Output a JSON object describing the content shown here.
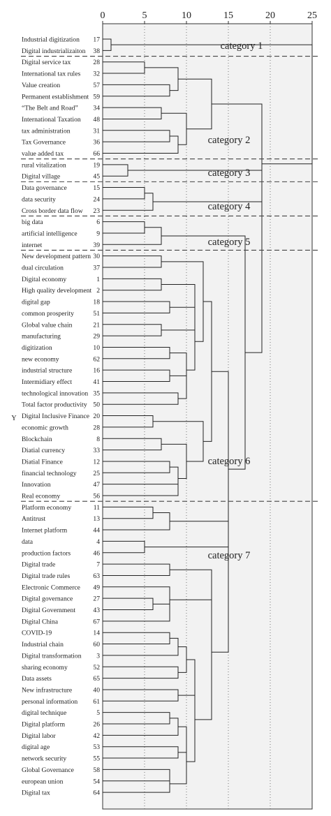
{
  "chart_data": {
    "type": "dendrogram",
    "axis": {
      "ticks": [
        0,
        5,
        10,
        15,
        20,
        25
      ],
      "range": [
        0,
        25
      ],
      "grid": "dotted-vertical"
    },
    "ylabel": "Y",
    "leaves": [
      {
        "label": "Industrial digitization",
        "id": "17"
      },
      {
        "label": "Digital industrializaiton",
        "id": "38"
      },
      {
        "label": "Digital service tax",
        "id": "28"
      },
      {
        "label": "International tax rules",
        "id": "32"
      },
      {
        "label": "Value creation",
        "id": "57"
      },
      {
        "label": "Permanent establishment",
        "id": "59"
      },
      {
        "label": "“The Belt and Road”",
        "id": "34"
      },
      {
        "label": "International Taxation",
        "id": "48"
      },
      {
        "label": "tax administration",
        "id": "31"
      },
      {
        "label": "Tax Governance",
        "id": "36"
      },
      {
        "label": "value added tax",
        "id": "66"
      },
      {
        "label": "rural vitalization",
        "id": "19"
      },
      {
        "label": "Digital village",
        "id": "45"
      },
      {
        "label": "Data governance",
        "id": "15"
      },
      {
        "label": "data security",
        "id": "24"
      },
      {
        "label": "Cross border data flow",
        "id": "23"
      },
      {
        "label": "big data",
        "id": "6"
      },
      {
        "label": "artificial intelligence",
        "id": "9"
      },
      {
        "label": "internet",
        "id": "39"
      },
      {
        "label": "New development pattern",
        "id": "30"
      },
      {
        "label": "dual circulation",
        "id": "37"
      },
      {
        "label": "Digital economy",
        "id": "1"
      },
      {
        "label": "High quality development",
        "id": "2"
      },
      {
        "label": "digital gap",
        "id": "18"
      },
      {
        "label": "common prosperity",
        "id": "51"
      },
      {
        "label": "Global value chain",
        "id": "21"
      },
      {
        "label": "manufacturing",
        "id": "29"
      },
      {
        "label": "digitization",
        "id": "10"
      },
      {
        "label": "new economy",
        "id": "62"
      },
      {
        "label": "industrial structure",
        "id": "16"
      },
      {
        "label": "Intermidiary effect",
        "id": "41"
      },
      {
        "label": "technological innovation",
        "id": "35"
      },
      {
        "label": "Total factor productivity",
        "id": "50"
      },
      {
        "label": "Digital Inclusive Finance",
        "id": "20"
      },
      {
        "label": "economic growth",
        "id": "28"
      },
      {
        "label": "Blockchain",
        "id": "8"
      },
      {
        "label": "Diatial currency",
        "id": "33"
      },
      {
        "label": "Diatial Finance",
        "id": "12"
      },
      {
        "label": "financial technology",
        "id": "25"
      },
      {
        "label": "Innovation",
        "id": "47"
      },
      {
        "label": "Real economy",
        "id": "56"
      },
      {
        "label": "Platform economy",
        "id": "11"
      },
      {
        "label": "Antitrust",
        "id": "13"
      },
      {
        "label": "Internet platform",
        "id": "44"
      },
      {
        "label": "data",
        "id": "4"
      },
      {
        "label": "production factors",
        "id": "46"
      },
      {
        "label": "Digital trade",
        "id": "7"
      },
      {
        "label": "Digital trade rules",
        "id": "63"
      },
      {
        "label": "Electronic Commerce",
        "id": "49"
      },
      {
        "label": "Digital governance",
        "id": "27"
      },
      {
        "label": "Digital Government",
        "id": "43"
      },
      {
        "label": "Digital China",
        "id": "67"
      },
      {
        "label": "COVID-19",
        "id": "14"
      },
      {
        "label": "Industrial chain",
        "id": "60"
      },
      {
        "label": "Digital transformation",
        "id": "3"
      },
      {
        "label": "sharing economy",
        "id": "52"
      },
      {
        "label": "Data assets",
        "id": "65"
      },
      {
        "label": "New infrastructure",
        "id": "40"
      },
      {
        "label": "personal information",
        "id": "61"
      },
      {
        "label": "digital technique",
        "id": "5"
      },
      {
        "label": "Digital platform",
        "id": "26"
      },
      {
        "label": "Digital labor",
        "id": "42"
      },
      {
        "label": "digital age",
        "id": "53"
      },
      {
        "label": "network security",
        "id": "55"
      },
      {
        "label": "Global Governance",
        "id": "58"
      },
      {
        "label": "european union",
        "id": "54"
      },
      {
        "label": "Digital tax",
        "id": "64"
      }
    ],
    "merges": [
      {
        "id": "a1",
        "height": 1,
        "children": [
          "L0",
          "L1"
        ]
      },
      {
        "id": "b1",
        "height": 5,
        "children": [
          "L2",
          "L3"
        ]
      },
      {
        "id": "b2",
        "height": 8,
        "children": [
          "L4",
          "L5"
        ]
      },
      {
        "id": "b3",
        "height": 9,
        "children": [
          "b1",
          "b2"
        ]
      },
      {
        "id": "b4",
        "height": 7,
        "children": [
          "L6",
          "L7"
        ]
      },
      {
        "id": "b5",
        "height": 8,
        "children": [
          "L8",
          "L9"
        ]
      },
      {
        "id": "b6",
        "height": 9,
        "children": [
          "b5",
          "L10"
        ]
      },
      {
        "id": "b7",
        "height": 10,
        "children": [
          "b4",
          "b6"
        ]
      },
      {
        "id": "b8",
        "height": 13,
        "children": [
          "b3",
          "b7"
        ]
      },
      {
        "id": "c1",
        "height": 3,
        "children": [
          "L11",
          "L12"
        ]
      },
      {
        "id": "d1",
        "height": 5,
        "children": [
          "L13",
          "L14"
        ]
      },
      {
        "id": "d2",
        "height": 6,
        "children": [
          "d1",
          "L15"
        ]
      },
      {
        "id": "e1",
        "height": 5,
        "children": [
          "L16",
          "L17"
        ]
      },
      {
        "id": "e2",
        "height": 7,
        "children": [
          "e1",
          "L18"
        ]
      },
      {
        "id": "f1",
        "height": 7,
        "children": [
          "L19",
          "L20"
        ]
      },
      {
        "id": "f2",
        "height": 7,
        "children": [
          "L21",
          "L22"
        ]
      },
      {
        "id": "f3",
        "height": 8,
        "children": [
          "L23",
          "L24"
        ]
      },
      {
        "id": "f4",
        "height": 7,
        "children": [
          "L25",
          "L26"
        ]
      },
      {
        "id": "f5",
        "height": 11,
        "children": [
          "f2",
          "f3"
        ]
      },
      {
        "id": "f6",
        "height": 11,
        "children": [
          "f5",
          "f4"
        ]
      },
      {
        "id": "f7",
        "height": 8,
        "children": [
          "L27",
          "L28"
        ]
      },
      {
        "id": "f8",
        "height": 8,
        "children": [
          "L29",
          "L30"
        ]
      },
      {
        "id": "f9",
        "height": 9,
        "children": [
          "L31",
          "L32"
        ]
      },
      {
        "id": "f10",
        "height": 10,
        "children": [
          "f8",
          "f9"
        ]
      },
      {
        "id": "f11",
        "height": 10,
        "children": [
          "f7",
          "f10"
        ]
      },
      {
        "id": "f12",
        "height": 11,
        "children": [
          "f6",
          "f11"
        ]
      },
      {
        "id": "f13",
        "height": 12,
        "children": [
          "f1",
          "f12"
        ]
      },
      {
        "id": "f14",
        "height": 6,
        "children": [
          "L33",
          "L34"
        ]
      },
      {
        "id": "f15",
        "height": 7,
        "children": [
          "L35",
          "L36"
        ]
      },
      {
        "id": "f16",
        "height": 8,
        "children": [
          "L37",
          "L38"
        ]
      },
      {
        "id": "f17",
        "height": 9,
        "children": [
          "L39",
          "L40"
        ]
      },
      {
        "id": "f18",
        "height": 9,
        "children": [
          "f16",
          "f17"
        ]
      },
      {
        "id": "f19",
        "height": 10,
        "children": [
          "f15",
          "f18"
        ]
      },
      {
        "id": "f20",
        "height": 12,
        "children": [
          "f14",
          "f19"
        ]
      },
      {
        "id": "f21",
        "height": 13,
        "children": [
          "f13",
          "f20"
        ]
      },
      {
        "id": "g1",
        "height": 6,
        "children": [
          "L41",
          "L42"
        ]
      },
      {
        "id": "g2",
        "height": 8,
        "children": [
          "g1",
          "L43"
        ]
      },
      {
        "id": "g3",
        "height": 5,
        "children": [
          "L44",
          "L45"
        ]
      },
      {
        "id": "g4",
        "height": 8,
        "children": [
          "L46",
          "L47"
        ]
      },
      {
        "id": "g5",
        "height": 6,
        "children": [
          "L49",
          "L50"
        ]
      },
      {
        "id": "g6",
        "height": 8,
        "children": [
          "g5",
          "L51"
        ]
      },
      {
        "id": "g7",
        "height": 8,
        "children": [
          "L48",
          "g6"
        ]
      },
      {
        "id": "g8",
        "height": 13,
        "children": [
          "g4",
          "g7"
        ]
      },
      {
        "id": "g9",
        "height": 8,
        "children": [
          "L52",
          "L53"
        ]
      },
      {
        "id": "g10",
        "height": 9,
        "children": [
          "g9",
          "L54"
        ]
      },
      {
        "id": "g11",
        "height": 9,
        "children": [
          "L55",
          "L56"
        ]
      },
      {
        "id": "g12",
        "height": 10,
        "children": [
          "g10",
          "g11"
        ]
      },
      {
        "id": "g13",
        "height": 9,
        "children": [
          "L57",
          "L58"
        ]
      },
      {
        "id": "g14",
        "height": 11,
        "children": [
          "g12",
          "g13"
        ]
      },
      {
        "id": "g15",
        "height": 8,
        "children": [
          "L59",
          "L60"
        ]
      },
      {
        "id": "g16",
        "height": 9,
        "children": [
          "g15",
          "L61"
        ]
      },
      {
        "id": "g17",
        "height": 9,
        "children": [
          "L62",
          "L63"
        ]
      },
      {
        "id": "g18",
        "height": 10,
        "children": [
          "g16",
          "g17"
        ]
      },
      {
        "id": "g19",
        "height": 8,
        "children": [
          "L64",
          "L65"
        ]
      },
      {
        "id": "g20",
        "height": 8,
        "children": [
          "g19",
          "L66"
        ]
      },
      {
        "id": "g21",
        "height": 10,
        "children": [
          "g18",
          "g20"
        ]
      },
      {
        "id": "g22",
        "height": 11,
        "children": [
          "g14",
          "g21"
        ]
      },
      {
        "id": "g23",
        "height": 13,
        "children": [
          "g8",
          "g22"
        ]
      },
      {
        "id": "g24",
        "height": 15,
        "children": [
          "g23",
          "g2"
        ]
      },
      {
        "id": "g25",
        "height": 15,
        "children": [
          "g24",
          "g3"
        ]
      },
      {
        "id": "h1",
        "height": 15,
        "children": [
          "f21",
          "g25"
        ]
      },
      {
        "id": "h2",
        "height": 17,
        "children": [
          "e2",
          "h1"
        ]
      },
      {
        "id": "h3",
        "height": 19,
        "children": [
          "d2",
          "h2"
        ]
      },
      {
        "id": "h4",
        "height": 19,
        "children": [
          "c1",
          "h3"
        ]
      },
      {
        "id": "h5",
        "height": 19,
        "children": [
          "b8",
          "h4"
        ]
      },
      {
        "id": "h6",
        "height": 25,
        "children": [
          "a1",
          "h5"
        ]
      }
    ],
    "categories": [
      {
        "label": "category 1",
        "range": [
          0,
          1
        ]
      },
      {
        "label": "category 2",
        "range": [
          2,
          10
        ]
      },
      {
        "label": "category 3",
        "range": [
          11,
          12
        ]
      },
      {
        "label": "category 4",
        "range": [
          13,
          15
        ]
      },
      {
        "label": "category 5",
        "range": [
          16,
          18
        ]
      },
      {
        "label": "category 6",
        "range": [
          19,
          40
        ]
      },
      {
        "label": "category 7",
        "range": [
          41,
          66
        ]
      }
    ]
  }
}
